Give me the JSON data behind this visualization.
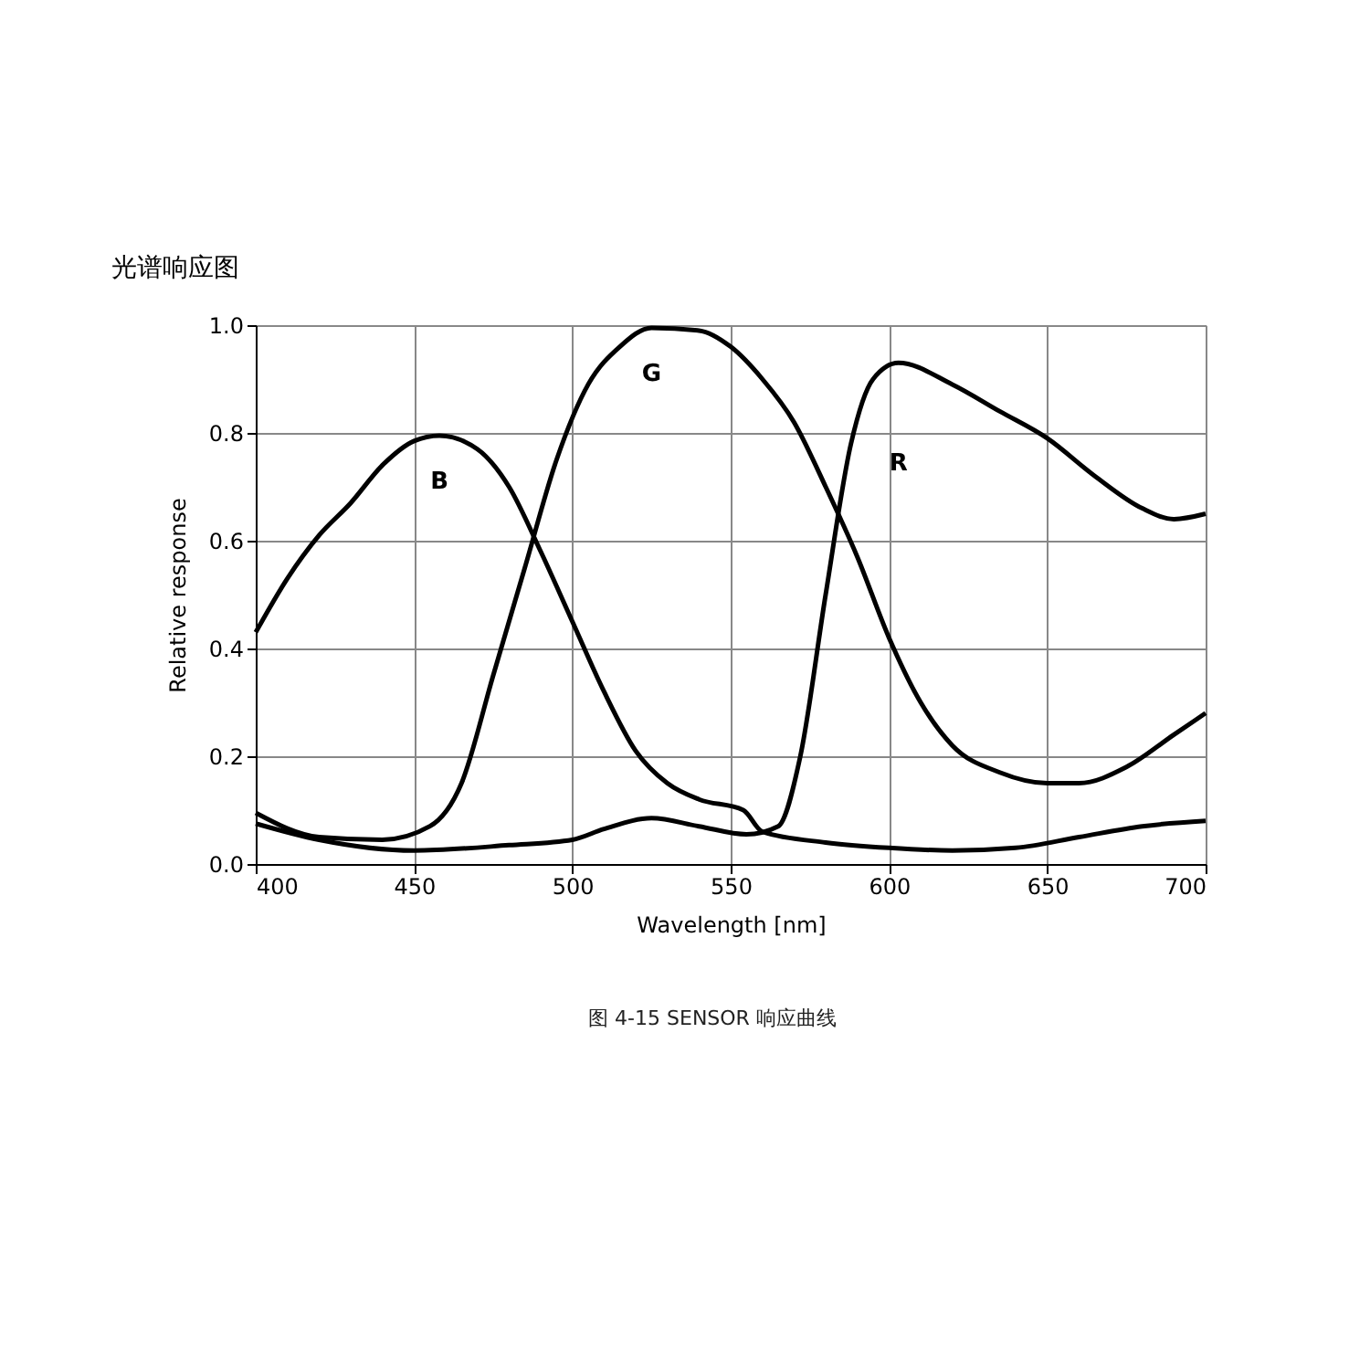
{
  "chart_data": {
    "type": "line",
    "title": "光谱响应图",
    "xlabel": "Wavelength [nm]",
    "ylabel": "Relative response",
    "xlim": [
      400,
      700
    ],
    "xticks": [
      400,
      450,
      500,
      550,
      600,
      650,
      700
    ],
    "ylim": [
      0,
      1
    ],
    "yticks": [
      {
        "value": 0,
        "label": "0.0"
      },
      {
        "value": 0.2,
        "label": "0.2"
      },
      {
        "value": 0.4,
        "label": "0.4"
      },
      {
        "value": 0.6,
        "label": "0.6"
      },
      {
        "value": 0.8,
        "label": "0.8"
      },
      {
        "value": 1,
        "label": "1.0"
      }
    ],
    "grid": true,
    "legend": false,
    "marker": "none",
    "line_style": "solid",
    "series": [
      {
        "name": "B",
        "color": "#000000",
        "x": [
          400,
          410,
          420,
          430,
          440,
          450,
          458,
          470,
          480,
          490,
          500,
          510,
          520,
          530,
          540,
          554,
          560,
          580,
          600,
          620,
          640,
          660,
          680,
          700
        ],
        "values": [
          0.43,
          0.53,
          0.61,
          0.67,
          0.74,
          0.785,
          0.795,
          0.77,
          0.7,
          0.58,
          0.45,
          0.32,
          0.21,
          0.15,
          0.12,
          0.1,
          0.06,
          0.04,
          0.03,
          0.025,
          0.03,
          0.05,
          0.07,
          0.08
        ]
      },
      {
        "name": "G",
        "color": "#000000",
        "x": [
          400,
          420,
          440,
          455,
          465,
          475,
          485,
          495,
          505,
          515,
          525,
          540,
          550,
          560,
          570,
          580,
          590,
          600,
          610,
          620,
          635,
          650,
          660,
          675,
          690,
          700
        ],
        "values": [
          0.095,
          0.05,
          0.045,
          0.07,
          0.15,
          0.35,
          0.55,
          0.75,
          0.89,
          0.96,
          0.995,
          0.99,
          0.96,
          0.9,
          0.82,
          0.7,
          0.57,
          0.42,
          0.3,
          0.22,
          0.17,
          0.15,
          0.15,
          0.18,
          0.24,
          0.28
        ]
      },
      {
        "name": "R",
        "color": "#000000",
        "x": [
          400,
          420,
          450,
          480,
          500,
          510,
          525,
          540,
          555,
          565,
          572,
          580,
          588,
          595,
          603,
          620,
          635,
          650,
          665,
          680,
          690,
          700
        ],
        "values": [
          0.075,
          0.045,
          0.025,
          0.035,
          0.045,
          0.065,
          0.085,
          0.07,
          0.055,
          0.07,
          0.2,
          0.5,
          0.78,
          0.9,
          0.93,
          0.89,
          0.84,
          0.79,
          0.72,
          0.66,
          0.64,
          0.65
        ]
      }
    ],
    "annotations": [
      "图 4-15 SENSOR 响应曲线"
    ]
  }
}
